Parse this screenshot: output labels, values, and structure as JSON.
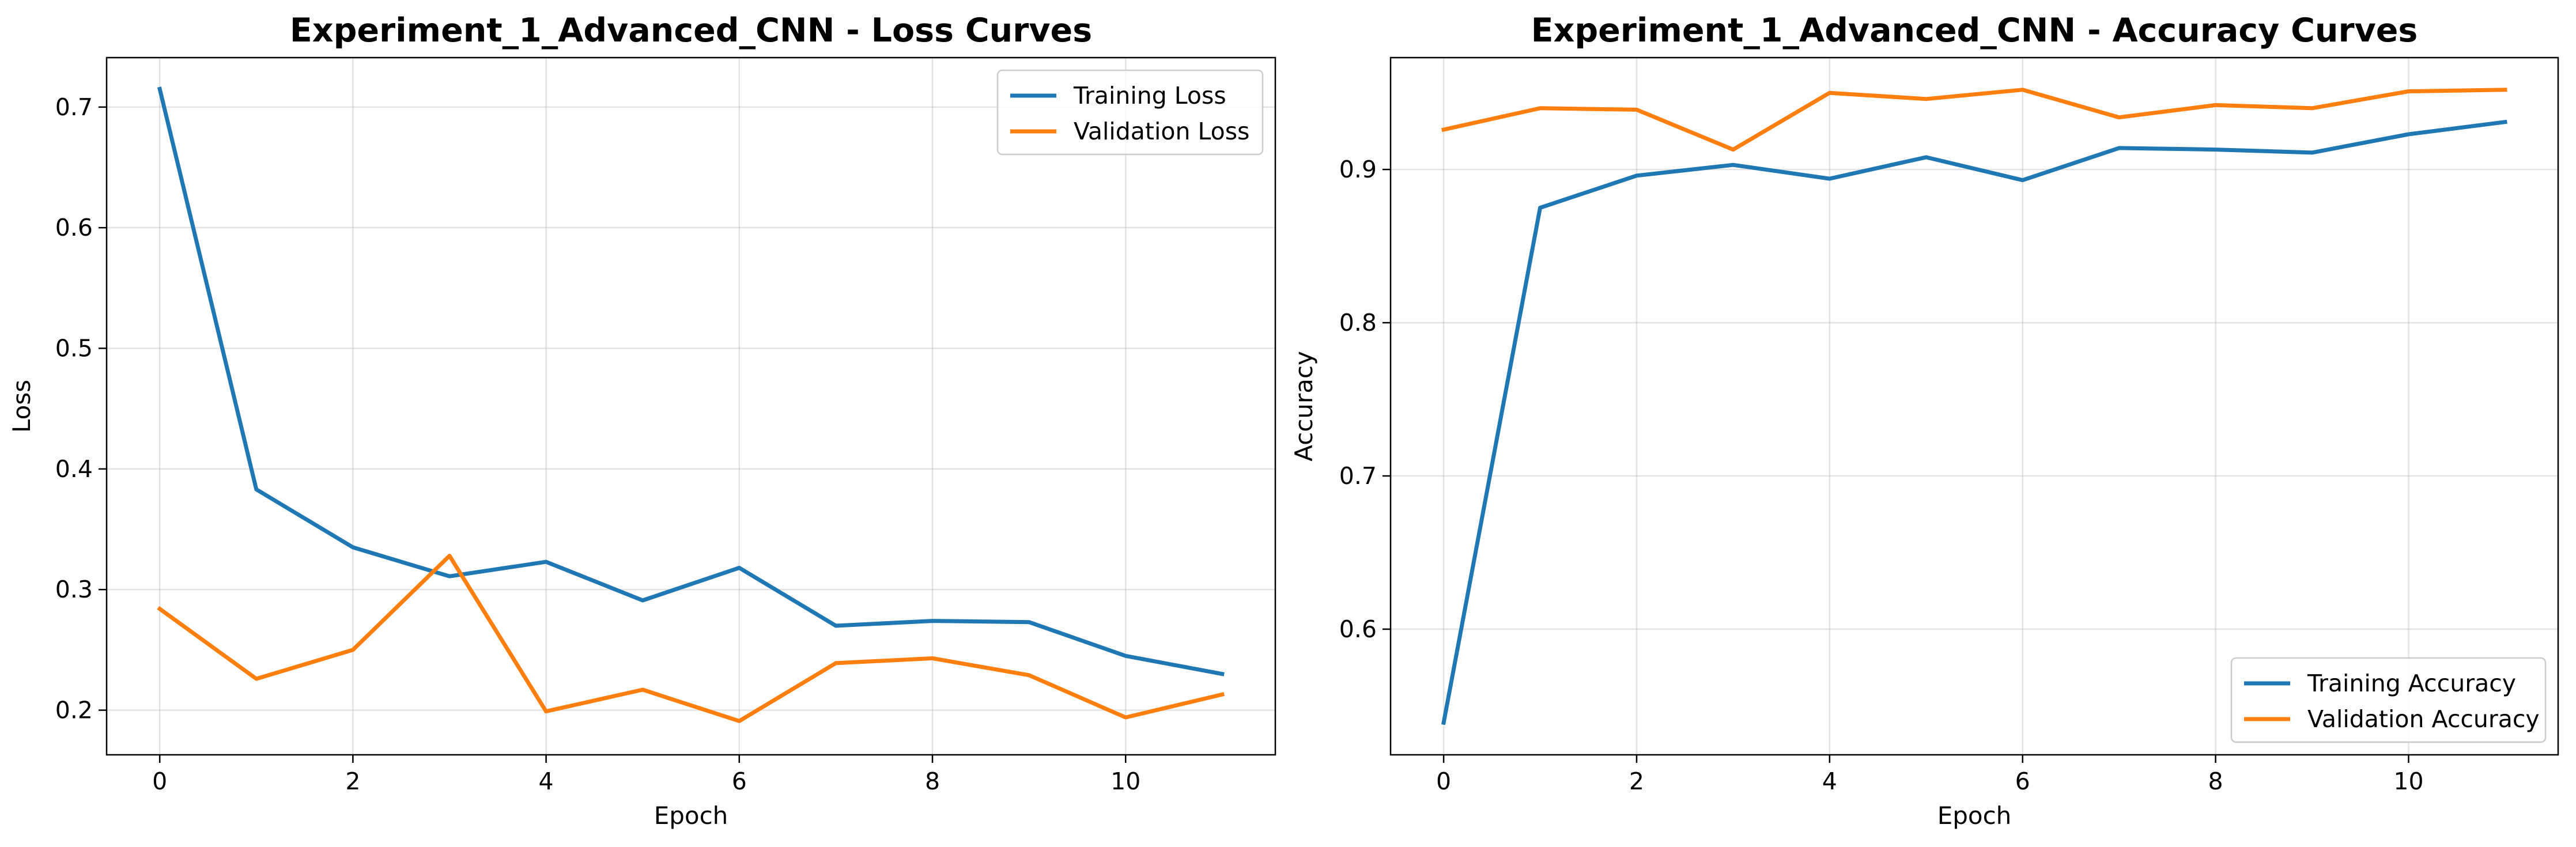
{
  "chart_data": [
    {
      "type": "line",
      "title": "Experiment_1_Advanced_CNN - Loss Curves",
      "xlabel": "Epoch",
      "ylabel": "Loss",
      "x": [
        0,
        1,
        2,
        3,
        4,
        5,
        6,
        7,
        8,
        9,
        10,
        11
      ],
      "xlim": [
        -0.55,
        11.55
      ],
      "ylim": [
        0.163,
        0.741
      ],
      "xticks": [
        0,
        2,
        4,
        6,
        8,
        10
      ],
      "xtick_labels": [
        "0",
        "2",
        "4",
        "6",
        "8",
        "10"
      ],
      "yticks": [
        0.2,
        0.3,
        0.4,
        0.5,
        0.6,
        0.7
      ],
      "ytick_labels": [
        "0.2",
        "0.3",
        "0.4",
        "0.5",
        "0.6",
        "0.7"
      ],
      "grid": true,
      "legend_position": "upper right",
      "series": [
        {
          "name": "Training Loss",
          "color": "#1f77b4",
          "values": [
            0.715,
            0.383,
            0.335,
            0.311,
            0.323,
            0.291,
            0.318,
            0.27,
            0.274,
            0.273,
            0.245,
            0.23
          ]
        },
        {
          "name": "Validation Loss",
          "color": "#ff7f0e",
          "values": [
            0.284,
            0.226,
            0.25,
            0.328,
            0.199,
            0.217,
            0.191,
            0.239,
            0.243,
            0.229,
            0.194,
            0.213
          ]
        }
      ]
    },
    {
      "type": "line",
      "title": "Experiment_1_Advanced_CNN - Accuracy Curves",
      "xlabel": "Epoch",
      "ylabel": "Accuracy",
      "x": [
        0,
        1,
        2,
        3,
        4,
        5,
        6,
        7,
        8,
        9,
        10,
        11
      ],
      "xlim": [
        -0.55,
        11.55
      ],
      "ylim": [
        0.518,
        0.973
      ],
      "xticks": [
        0,
        2,
        4,
        6,
        8,
        10
      ],
      "xtick_labels": [
        "0",
        "2",
        "4",
        "6",
        "8",
        "10"
      ],
      "yticks": [
        0.6,
        0.7,
        0.8,
        0.9
      ],
      "ytick_labels": [
        "0.6",
        "0.7",
        "0.8",
        "0.9"
      ],
      "grid": true,
      "legend_position": "lower right",
      "series": [
        {
          "name": "Training Accuracy",
          "color": "#1f77b4",
          "values": [
            0.539,
            0.875,
            0.896,
            0.903,
            0.894,
            0.908,
            0.893,
            0.914,
            0.913,
            0.911,
            0.923,
            0.931
          ]
        },
        {
          "name": "Validation Accuracy",
          "color": "#ff7f0e",
          "values": [
            0.926,
            0.94,
            0.939,
            0.913,
            0.95,
            0.946,
            0.952,
            0.934,
            0.942,
            0.94,
            0.951,
            0.952
          ]
        }
      ]
    }
  ]
}
